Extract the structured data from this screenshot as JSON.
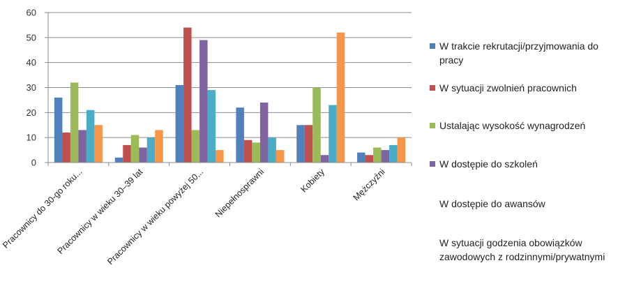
{
  "chart_data": {
    "type": "bar",
    "categories": [
      "Pracownicy do 30-go roku...",
      "Pracownicy w wieku 30–39 lat",
      "Pracownicy w wieku powyżej 50...",
      "Niepełnosprawni",
      "Kobiety",
      "Mężczyźni"
    ],
    "series": [
      {
        "name": "W trakcie rekrutacji/przyjmowania do pracy",
        "color": "#4F81BD",
        "values": [
          26,
          2,
          31,
          22,
          15,
          4
        ]
      },
      {
        "name": "W sytuacji zwolnień pracownich",
        "color": "#C0504D",
        "values": [
          12,
          7,
          54,
          9,
          15,
          3
        ]
      },
      {
        "name": "Ustalając wysokość wynagrodzeń",
        "color": "#9BBB59",
        "values": [
          32,
          11,
          13,
          8,
          30,
          6
        ]
      },
      {
        "name": "W dostępie do szkoleń",
        "color": "#8064A2",
        "values": [
          13,
          6,
          49,
          24,
          3,
          5
        ]
      },
      {
        "name": "W dostępie do awansów",
        "color": "#4BACC6",
        "values": [
          21,
          10,
          29,
          10,
          23,
          7
        ]
      },
      {
        "name": "W sytuacji godzenia obowiązków zawodowych z rodzinnymi/prywatnymi",
        "color": "#F79646",
        "values": [
          15,
          13,
          5,
          5,
          52,
          10
        ]
      }
    ],
    "ylim": [
      0,
      60
    ],
    "yticks": [
      0,
      10,
      20,
      30,
      40,
      50,
      60
    ],
    "grid": true,
    "legend_position": "right"
  },
  "legend": {
    "items": [
      {
        "label": "W trakcie rekrutacji/przyjmowania do pracy",
        "color": "#4F81BD",
        "show_swatch": true
      },
      {
        "label": "W sytuacji zwolnień pracownich",
        "color": "#C0504D",
        "show_swatch": true
      },
      {
        "label": "Ustalając wysokość wynagrodzeń",
        "color": "#9BBB59",
        "show_swatch": true
      },
      {
        "label": "W dostępie do szkoleń",
        "color": "#8064A2",
        "show_swatch": true
      },
      {
        "label": "W dostępie do awansów",
        "color": "#4BACC6",
        "show_swatch": false
      },
      {
        "label": "W sytuacji godzenia obowiązków zawodowych z rodzinnymi/prywatnymi",
        "color": "#F79646",
        "show_swatch": false
      }
    ]
  }
}
